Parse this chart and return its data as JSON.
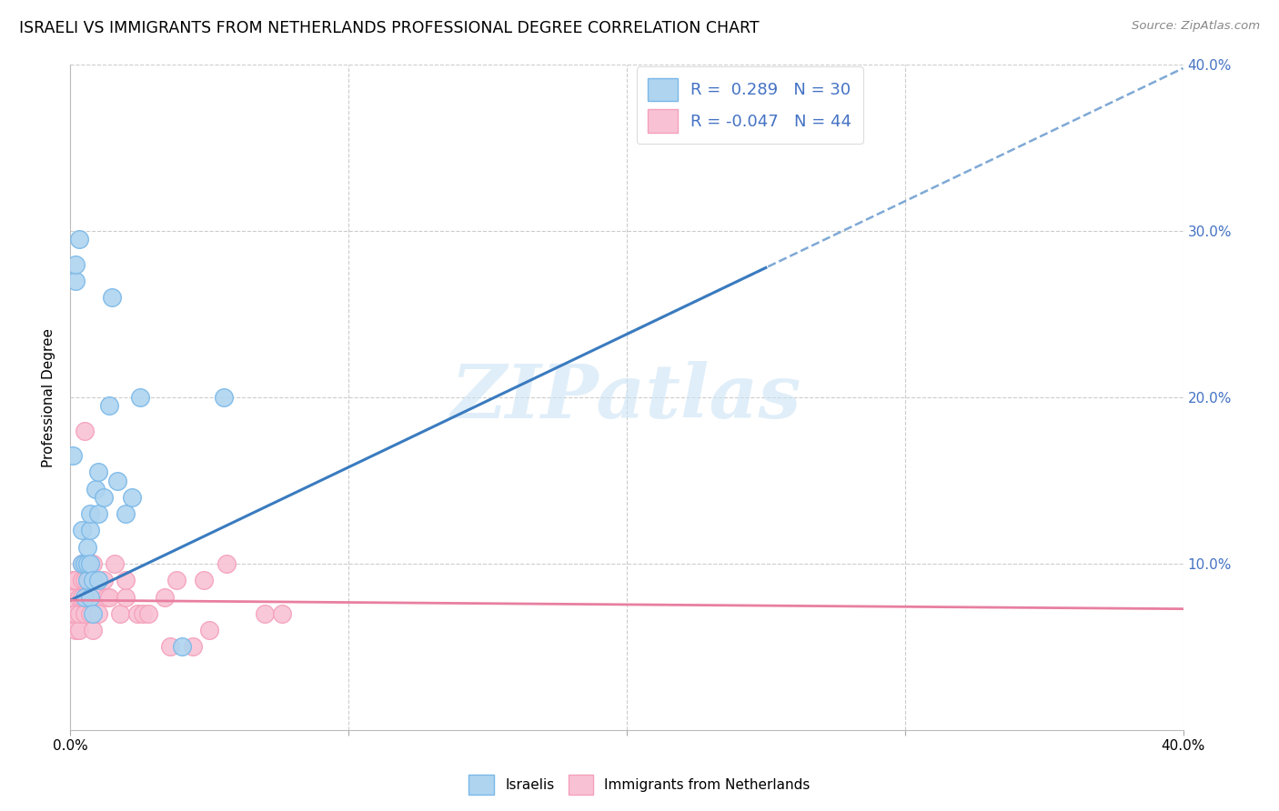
{
  "title": "ISRAELI VS IMMIGRANTS FROM NETHERLANDS PROFESSIONAL DEGREE CORRELATION CHART",
  "source": "Source: ZipAtlas.com",
  "ylabel": "Professional Degree",
  "xlim": [
    0.0,
    0.4
  ],
  "ylim": [
    0.0,
    0.4
  ],
  "xtick_vals": [
    0.0,
    0.1,
    0.2,
    0.3,
    0.4
  ],
  "xtick_labels_show": [
    "0.0%",
    "",
    "",
    "",
    "40.0%"
  ],
  "ytick_vals": [
    0.0,
    0.1,
    0.2,
    0.3,
    0.4
  ],
  "ytick_labels_right": [
    "",
    "10.0%",
    "20.0%",
    "30.0%",
    "40.0%"
  ],
  "blue_color": "#7ab8e8",
  "pink_color": "#f5a0bb",
  "blue_line_color": "#3a7bbf",
  "pink_line_color": "#e87fa0",
  "blue_scatter_fill": "#aed4f0",
  "pink_scatter_fill": "#f8c2d4",
  "watermark": "ZIPatlas",
  "israelis_label": "Israelis",
  "netherlands_label": "Immigrants from Netherlands",
  "blue_trend_slope": 0.8,
  "blue_trend_intercept": 0.078,
  "pink_trend_slope": -0.013,
  "pink_trend_intercept": 0.078,
  "israelis_x": [
    0.001,
    0.002,
    0.002,
    0.003,
    0.004,
    0.004,
    0.005,
    0.005,
    0.006,
    0.006,
    0.006,
    0.007,
    0.007,
    0.007,
    0.007,
    0.008,
    0.008,
    0.009,
    0.01,
    0.01,
    0.01,
    0.012,
    0.014,
    0.015,
    0.017,
    0.02,
    0.022,
    0.025,
    0.04,
    0.055
  ],
  "israelis_y": [
    0.165,
    0.27,
    0.28,
    0.295,
    0.1,
    0.12,
    0.08,
    0.1,
    0.09,
    0.1,
    0.11,
    0.12,
    0.08,
    0.1,
    0.13,
    0.07,
    0.09,
    0.145,
    0.13,
    0.155,
    0.09,
    0.14,
    0.195,
    0.26,
    0.15,
    0.13,
    0.14,
    0.2,
    0.05,
    0.2
  ],
  "netherlands_x": [
    0.001,
    0.001,
    0.001,
    0.002,
    0.002,
    0.002,
    0.003,
    0.003,
    0.003,
    0.004,
    0.004,
    0.004,
    0.005,
    0.005,
    0.005,
    0.006,
    0.006,
    0.007,
    0.007,
    0.007,
    0.008,
    0.008,
    0.008,
    0.009,
    0.01,
    0.012,
    0.013,
    0.014,
    0.016,
    0.018,
    0.02,
    0.02,
    0.024,
    0.026,
    0.028,
    0.034,
    0.036,
    0.038,
    0.044,
    0.048,
    0.05,
    0.056,
    0.07,
    0.076
  ],
  "netherlands_y": [
    0.07,
    0.08,
    0.09,
    0.06,
    0.07,
    0.09,
    0.06,
    0.07,
    0.08,
    0.08,
    0.09,
    0.1,
    0.07,
    0.09,
    0.18,
    0.08,
    0.09,
    0.07,
    0.09,
    0.1,
    0.06,
    0.09,
    0.1,
    0.08,
    0.07,
    0.09,
    0.08,
    0.08,
    0.1,
    0.07,
    0.08,
    0.09,
    0.07,
    0.07,
    0.07,
    0.08,
    0.05,
    0.09,
    0.05,
    0.09,
    0.06,
    0.1,
    0.07,
    0.07
  ]
}
